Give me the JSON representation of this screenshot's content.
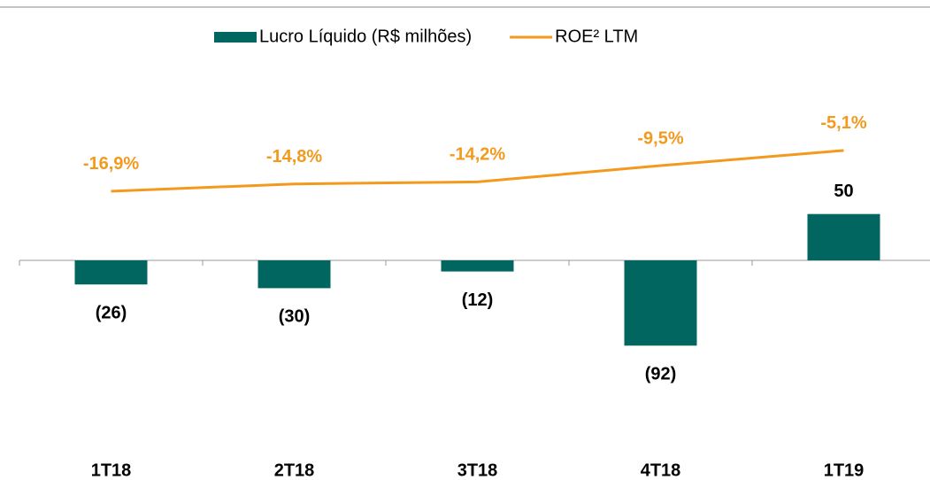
{
  "chart_data": {
    "type": "bar",
    "categories": [
      "1T18",
      "2T18",
      "3T18",
      "4T18",
      "1T19"
    ],
    "series": [
      {
        "name": "Lucro Líquido (R$ milhões)",
        "type": "bar",
        "color": "#00665f",
        "values": [
          -26,
          -30,
          -12,
          -92,
          50
        ],
        "value_labels": [
          "(26)",
          "(30)",
          "(12)",
          "(92)",
          "50"
        ]
      },
      {
        "name": "ROE² LTM",
        "type": "line",
        "axis": "y2",
        "color": "#f39a1e",
        "values": [
          -16.9,
          -14.8,
          -14.2,
          -9.5,
          -5.1
        ],
        "value_labels": [
          "-16,9%",
          "-14,8%",
          "-14,2%",
          "-9,5%",
          "-5,1%"
        ]
      }
    ],
    "ylim": [
      -150,
      150
    ],
    "y2lim": [
      -40,
      0
    ],
    "legend": "top"
  }
}
